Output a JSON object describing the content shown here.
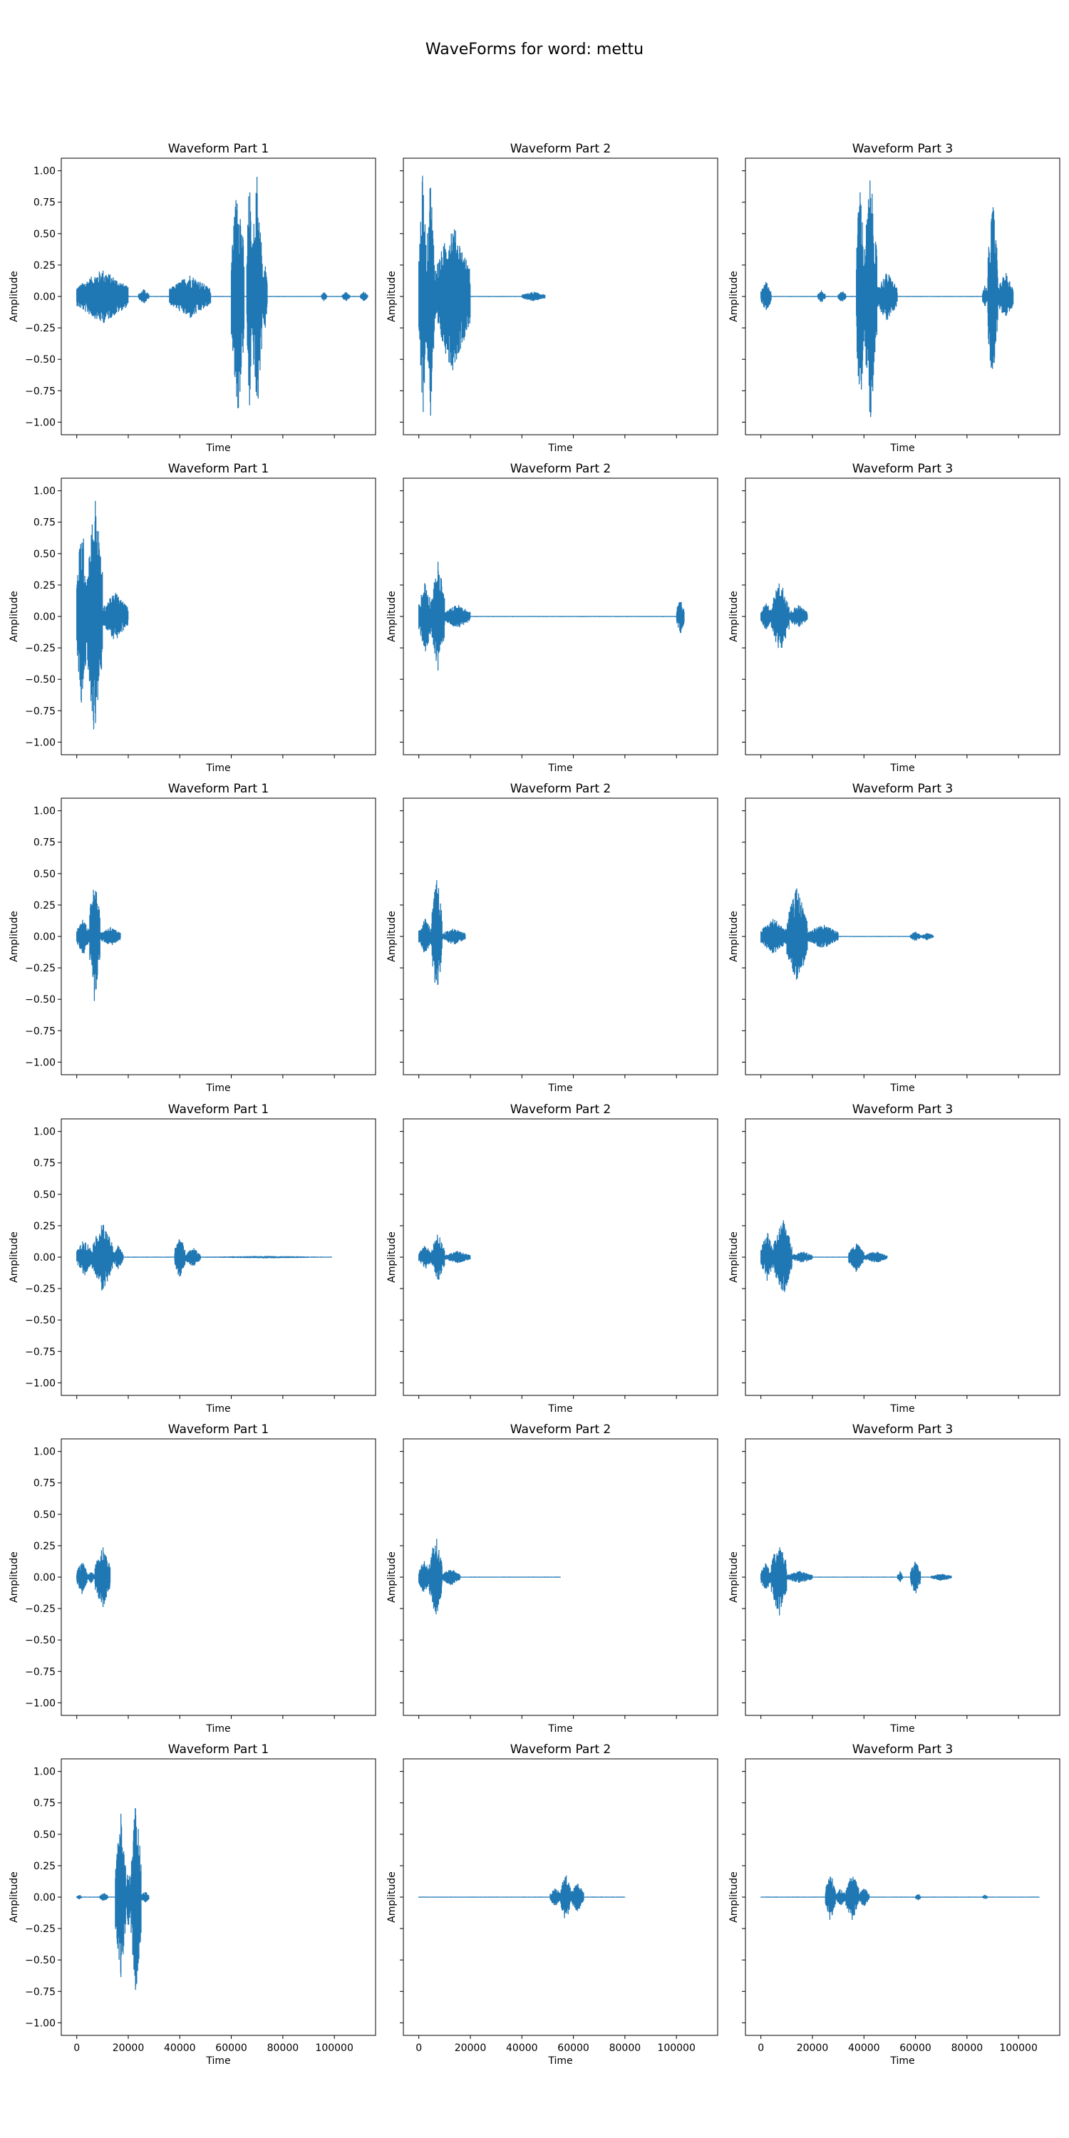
{
  "chart_data": {
    "type": "line",
    "title": "WaveForms for word: mettu",
    "layout": "6 rows x 3 columns, shared x and y axes",
    "xlabel": "Time",
    "ylabel": "Amplitude",
    "xlim": [
      -6000,
      116000
    ],
    "ylim": [
      -1.1,
      1.1
    ],
    "x_ticks": [
      0,
      20000,
      40000,
      60000,
      80000,
      100000
    ],
    "y_ticks": [
      1.0,
      0.75,
      0.5,
      0.25,
      0.0,
      -0.25,
      -0.5,
      -0.75,
      -1.0
    ],
    "y_tick_labels": [
      "1.00",
      "0.75",
      "0.50",
      "0.25",
      "0.00",
      "−0.25",
      "−0.50",
      "−0.75",
      "−1.00"
    ],
    "grid": false,
    "series_color": "#1f77b4",
    "panels": [
      {
        "title": "Waveform Part 1",
        "length": 113000,
        "bursts": [
          [
            0,
            20000,
            0.22
          ],
          [
            24000,
            28000,
            0.06
          ],
          [
            36000,
            52000,
            0.18
          ],
          [
            60000,
            65000,
            1.0
          ],
          [
            66000,
            68000,
            1.0
          ],
          [
            68000,
            72000,
            1.0
          ],
          [
            72000,
            74000,
            0.3
          ],
          [
            95000,
            97000,
            0.04
          ],
          [
            103000,
            106000,
            0.04
          ],
          [
            110000,
            113000,
            0.04
          ]
        ]
      },
      {
        "title": "Waveform Part 2",
        "length": 49000,
        "bursts": [
          [
            0,
            3000,
            1.0
          ],
          [
            3000,
            6000,
            1.0
          ],
          [
            6000,
            20000,
            0.6
          ],
          [
            40000,
            49000,
            0.04
          ]
        ]
      },
      {
        "title": "Waveform Part 3",
        "length": 98000,
        "bursts": [
          [
            0,
            4000,
            0.12
          ],
          [
            22000,
            25000,
            0.05
          ],
          [
            30000,
            33000,
            0.05
          ],
          [
            37000,
            40000,
            1.0
          ],
          [
            40000,
            45000,
            1.0
          ],
          [
            45000,
            53000,
            0.2
          ],
          [
            86000,
            88000,
            0.1
          ],
          [
            88000,
            92000,
            0.8
          ],
          [
            92000,
            98000,
            0.2
          ]
        ]
      },
      {
        "title": "Waveform Part 1",
        "length": 20000,
        "bursts": [
          [
            0,
            4000,
            0.8
          ],
          [
            4000,
            10000,
            1.0
          ],
          [
            10000,
            20000,
            0.2
          ]
        ]
      },
      {
        "title": "Waveform Part 2",
        "length": 103000,
        "bursts": [
          [
            0,
            5000,
            0.3
          ],
          [
            5000,
            10000,
            0.45
          ],
          [
            10000,
            20000,
            0.1
          ],
          [
            100000,
            103000,
            0.15
          ]
        ]
      },
      {
        "title": "Waveform Part 3",
        "length": 18000,
        "bursts": [
          [
            0,
            4000,
            0.12
          ],
          [
            4000,
            11000,
            0.3
          ],
          [
            11000,
            18000,
            0.1
          ]
        ]
      },
      {
        "title": "Waveform Part 1",
        "length": 17000,
        "bursts": [
          [
            0,
            5000,
            0.15
          ],
          [
            5000,
            9000,
            0.55
          ],
          [
            9000,
            17000,
            0.08
          ]
        ]
      },
      {
        "title": "Waveform Part 2",
        "length": 18000,
        "bursts": [
          [
            0,
            5000,
            0.15
          ],
          [
            5000,
            9000,
            0.5
          ],
          [
            9000,
            18000,
            0.07
          ]
        ]
      },
      {
        "title": "Waveform Part 3",
        "length": 67000,
        "bursts": [
          [
            0,
            10000,
            0.15
          ],
          [
            10000,
            18000,
            0.4
          ],
          [
            18000,
            30000,
            0.1
          ],
          [
            58000,
            62000,
            0.04
          ],
          [
            62000,
            67000,
            0.03
          ]
        ]
      },
      {
        "title": "Waveform Part 1",
        "length": 99000,
        "bursts": [
          [
            0,
            6000,
            0.15
          ],
          [
            6000,
            14000,
            0.28
          ],
          [
            14000,
            18000,
            0.1
          ],
          [
            38000,
            42000,
            0.18
          ],
          [
            42000,
            48000,
            0.08
          ],
          [
            48000,
            99000,
            0.01
          ]
        ]
      },
      {
        "title": "Waveform Part 2",
        "length": 20000,
        "bursts": [
          [
            0,
            5000,
            0.1
          ],
          [
            5000,
            10000,
            0.2
          ],
          [
            10000,
            20000,
            0.05
          ]
        ]
      },
      {
        "title": "Waveform Part 3",
        "length": 49000,
        "bursts": [
          [
            0,
            5000,
            0.2
          ],
          [
            5000,
            12000,
            0.32
          ],
          [
            12000,
            20000,
            0.05
          ],
          [
            34000,
            40000,
            0.12
          ],
          [
            40000,
            49000,
            0.05
          ]
        ]
      },
      {
        "title": "Waveform Part 1",
        "length": 13000,
        "bursts": [
          [
            0,
            4000,
            0.14
          ],
          [
            4000,
            7000,
            0.05
          ],
          [
            7000,
            13000,
            0.26
          ]
        ]
      },
      {
        "title": "Waveform Part 2",
        "length": 55000,
        "bursts": [
          [
            0,
            4000,
            0.15
          ],
          [
            4000,
            9000,
            0.35
          ],
          [
            9000,
            16000,
            0.07
          ]
        ]
      },
      {
        "title": "Waveform Part 3",
        "length": 74000,
        "bursts": [
          [
            0,
            4000,
            0.12
          ],
          [
            4000,
            10000,
            0.32
          ],
          [
            10000,
            20000,
            0.05
          ],
          [
            53000,
            55000,
            0.05
          ],
          [
            58000,
            62000,
            0.14
          ],
          [
            66000,
            74000,
            0.03
          ]
        ]
      },
      {
        "title": "Waveform Part 1",
        "length": 28000,
        "bursts": [
          [
            0,
            2000,
            0.02
          ],
          [
            9000,
            12000,
            0.04
          ],
          [
            15000,
            19000,
            0.7
          ],
          [
            19000,
            21000,
            0.25
          ],
          [
            21000,
            25000,
            0.8
          ],
          [
            25000,
            28000,
            0.05
          ]
        ]
      },
      {
        "title": "Waveform Part 2",
        "length": 80000,
        "bursts": [
          [
            51000,
            55000,
            0.08
          ],
          [
            55000,
            59000,
            0.2
          ],
          [
            59000,
            64000,
            0.12
          ]
        ]
      },
      {
        "title": "Waveform Part 3",
        "length": 108000,
        "bursts": [
          [
            25000,
            29000,
            0.2
          ],
          [
            29000,
            33000,
            0.07
          ],
          [
            33000,
            38000,
            0.2
          ],
          [
            38000,
            42000,
            0.08
          ],
          [
            60000,
            62000,
            0.03
          ],
          [
            86000,
            88000,
            0.02
          ]
        ]
      }
    ]
  }
}
